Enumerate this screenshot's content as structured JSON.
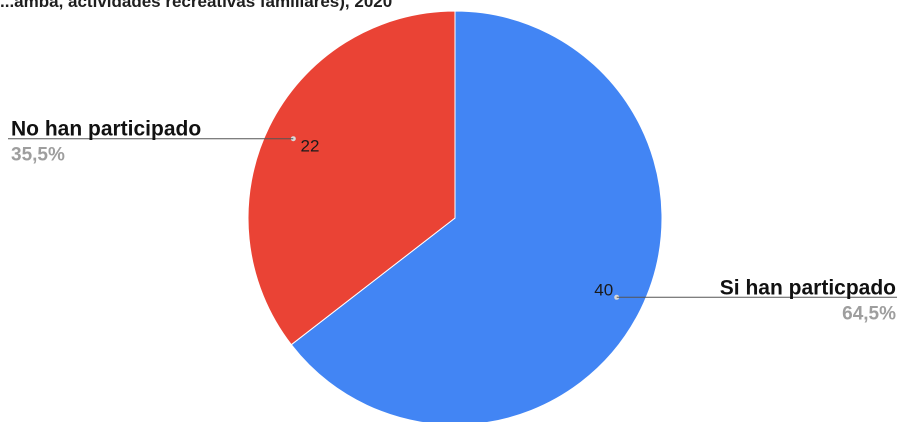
{
  "chart_data": {
    "type": "pie",
    "title": "...amba, actividades recreativas familiares), 2020",
    "slices": [
      {
        "label": "Si han particpado",
        "value": 40,
        "percent_label": "64,5%",
        "color": "#4285f4"
      },
      {
        "label": "No han participado",
        "value": 22,
        "percent_label": "35,5%",
        "color": "#ea4335"
      }
    ],
    "start_angle": "12 o'clock",
    "direction": "clockwise",
    "legend": "callouts beside slices"
  }
}
